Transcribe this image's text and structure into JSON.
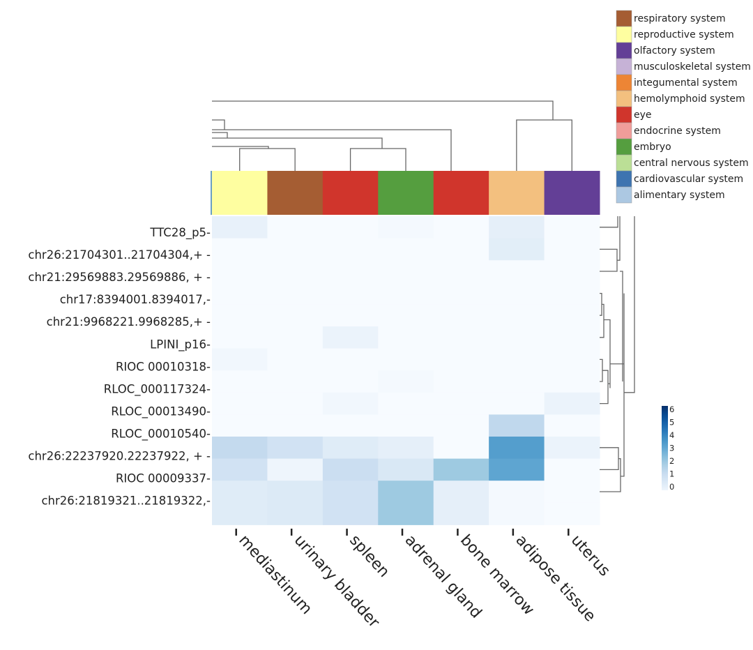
{
  "chart_data": {
    "type": "heatmap",
    "title": "",
    "xlabel": "",
    "ylabel": "",
    "columns": [
      "mediastinum",
      "urinary bladder",
      "spleen",
      "adrenal gland",
      "bone marrow",
      "adipose tissue",
      "uterus"
    ],
    "column_groups": [
      "reproductive system",
      "respiratory system",
      "eye",
      "embryo",
      "eye",
      "hemolymphoid system",
      "olfactory system"
    ],
    "row_labels": [
      "TTC28_p5",
      "chr26:21704301..21704304,+",
      "chr21:29569883.29569886, +",
      "chr17:8394001.8394017,-",
      "chr21:9968221.9968285,+",
      "LPINI_p16",
      "RIOC 00010318",
      "RLOC_000117324",
      "RLOC_00013490",
      "RLOC_00010540",
      "chr26:22237920.22237922, +",
      "RIOC 00009337",
      "chr26:21819321..21819322,-"
    ],
    "values": [
      [
        0.5,
        0.0,
        0.0,
        0.1,
        0.0,
        0.6,
        0.0
      ],
      [
        0.0,
        0.0,
        0.0,
        0.0,
        0.0,
        0.7,
        0.0
      ],
      [
        0.0,
        0.0,
        0.0,
        0.0,
        0.0,
        0.0,
        0.0
      ],
      [
        0.0,
        0.0,
        0.0,
        0.0,
        0.0,
        0.0,
        0.0
      ],
      [
        0.0,
        0.0,
        0.0,
        0.0,
        0.0,
        0.0,
        0.0
      ],
      [
        0.0,
        0.0,
        0.4,
        0.0,
        0.0,
        0.0,
        0.0
      ],
      [
        0.2,
        0.0,
        0.0,
        0.0,
        0.0,
        0.0,
        0.0
      ],
      [
        0.0,
        0.0,
        0.0,
        0.1,
        0.0,
        0.0,
        0.0
      ],
      [
        0.0,
        0.0,
        0.2,
        0.0,
        0.0,
        0.0,
        0.4
      ],
      [
        0.0,
        0.0,
        0.0,
        0.0,
        0.0,
        1.8,
        0.0
      ],
      [
        1.7,
        1.3,
        0.8,
        0.6,
        0.0,
        3.8,
        0.4
      ],
      [
        1.3,
        0.3,
        1.5,
        1.0,
        2.5,
        3.6,
        0.0
      ],
      [
        0.8,
        0.9,
        1.3,
        2.5,
        0.6,
        0.1,
        0.0
      ]
    ],
    "extra_bottom_row_note": "a 14th unlabeled row of cells is rendered at the bottom",
    "bottom_row_values": [
      0.8,
      0.9,
      1.3,
      2.5,
      0.6,
      0.1,
      0.0
    ],
    "colorbar": {
      "min": 0,
      "max": 6,
      "ticks": [
        0,
        1,
        2,
        3,
        4,
        5,
        6
      ],
      "colormap": "Blues"
    },
    "legend": {
      "placement": "top-right",
      "entries": [
        {
          "label": "respiratory system",
          "color": "#a55d33"
        },
        {
          "label": "reproductive system",
          "color": "#fefea0"
        },
        {
          "label": "olfactory system",
          "color": "#633f96"
        },
        {
          "label": "musculoskeletal system",
          "color": "#c6b2d6"
        },
        {
          "label": "integumental system",
          "color": "#ed8535"
        },
        {
          "label": "hemolymphoid system",
          "color": "#f3c07f"
        },
        {
          "label": "eye",
          "color": "#d0352c"
        },
        {
          "label": "endocrine system",
          "color": "#f09d9a"
        },
        {
          "label": "embryo",
          "color": "#559e3f"
        },
        {
          "label": "central nervous system",
          "color": "#bbdf96"
        },
        {
          "label": "cardiovascular system",
          "color": "#3e74b0"
        },
        {
          "label": "alimentary system",
          "color": "#acc8e2"
        }
      ]
    },
    "group_colors": {
      "respiratory system": "#a55d33",
      "reproductive system": "#fefea0",
      "olfactory system": "#633f96",
      "hemolymphoid system": "#f3c07f",
      "eye": "#d0352c",
      "embryo": "#559e3f"
    },
    "dendrogram_top": true,
    "dendrogram_right": true
  }
}
